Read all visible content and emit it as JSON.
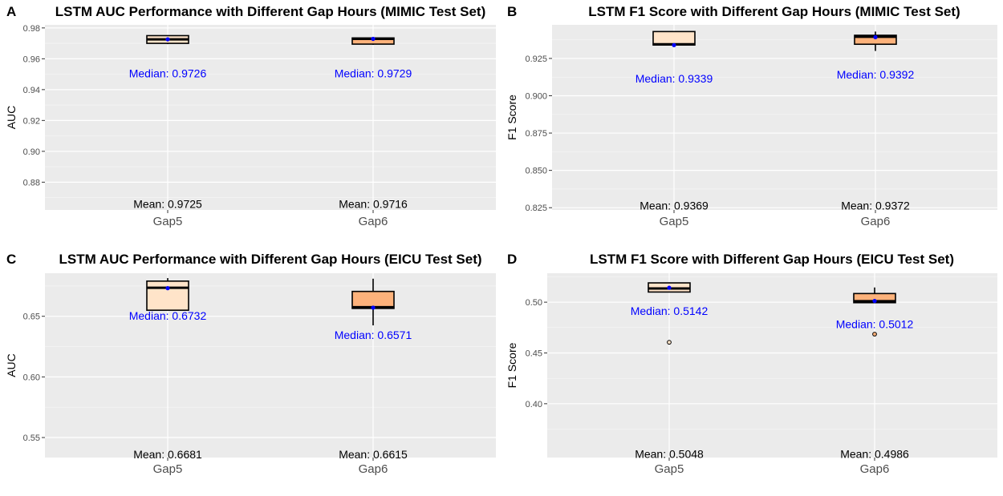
{
  "chart_data": [
    {
      "panel": "A",
      "type": "box",
      "title": "LSTM AUC Performance with Different Gap Hours (MIMIC Test Set)",
      "xlabel": "",
      "ylabel": "AUC",
      "ylim": [
        0.862,
        0.982
      ],
      "yticks": [
        0.88,
        0.9,
        0.92,
        0.94,
        0.96,
        0.98
      ],
      "yticks_text": [
        "0.88",
        "0.90",
        "0.92",
        "0.94",
        "0.96",
        "0.98"
      ],
      "categories": [
        "Gap5",
        "Gap6"
      ],
      "fill_colors": [
        "#ffe4c9",
        "#fdb27b"
      ],
      "boxes": [
        {
          "whisker_low": 0.9695,
          "q1": 0.97,
          "median": 0.9726,
          "q3": 0.975,
          "whisker_high": 0.975,
          "outliers": [],
          "point": 0.9726
        },
        {
          "whisker_low": 0.969,
          "q1": 0.9695,
          "median": 0.9729,
          "q3": 0.9735,
          "whisker_high": 0.9735,
          "outliers": [],
          "point": 0.9729
        }
      ],
      "median_labels": [
        "Median: 0.9726",
        "Median: 0.9729"
      ],
      "mean_labels": [
        "Mean: 0.9725",
        "Mean: 0.9716"
      ],
      "median_label_y": [
        0.9505,
        0.9505
      ],
      "mean_label_y": 0.866
    },
    {
      "panel": "B",
      "type": "box",
      "title": "LSTM F1 Score with Different Gap Hours (MIMIC Test Set)",
      "xlabel": "",
      "ylabel": "F1 Score",
      "ylim": [
        0.8235,
        0.9475
      ],
      "yticks": [
        0.825,
        0.85,
        0.875,
        0.9,
        0.925
      ],
      "yticks_text": [
        "0.825",
        "0.850",
        "0.875",
        "0.900",
        "0.925"
      ],
      "categories": [
        "Gap5",
        "Gap6"
      ],
      "fill_colors": [
        "#ffe4c9",
        "#fdb27b"
      ],
      "boxes": [
        {
          "whisker_low": 0.9335,
          "q1": 0.934,
          "median": 0.9345,
          "q3": 0.943,
          "whisker_high": 0.943,
          "outliers": [],
          "point": 0.9339
        },
        {
          "whisker_low": 0.93,
          "q1": 0.9345,
          "median": 0.9395,
          "q3": 0.9405,
          "whisker_high": 0.943,
          "outliers": [],
          "point": 0.9392
        }
      ],
      "median_labels": [
        "Median: 0.9339",
        "Median: 0.9392"
      ],
      "mean_labels": [
        "Mean: 0.9369",
        "Mean: 0.9372"
      ],
      "median_label_y": [
        0.9116,
        0.9143
      ],
      "mean_label_y": 0.8265
    },
    {
      "panel": "C",
      "type": "box",
      "title": "LSTM AUC Performance with Different Gap Hours (EICU Test Set)",
      "xlabel": "",
      "ylabel": "AUC",
      "ylim": [
        0.5335,
        0.6855
      ],
      "yticks": [
        0.55,
        0.6,
        0.65
      ],
      "yticks_text": [
        "0.55",
        "0.60",
        "0.65"
      ],
      "categories": [
        "Gap5",
        "Gap6"
      ],
      "fill_colors": [
        "#ffe4c9",
        "#fdb27b"
      ],
      "boxes": [
        {
          "whisker_low": 0.655,
          "q1": 0.655,
          "median": 0.6735,
          "q3": 0.679,
          "whisker_high": 0.6815,
          "outliers": [],
          "point": 0.6732
        },
        {
          "whisker_low": 0.6425,
          "q1": 0.6565,
          "median": 0.6575,
          "q3": 0.6705,
          "whisker_high": 0.681,
          "outliers": [],
          "point": 0.6571
        }
      ],
      "median_labels": [
        "Median: 0.6732",
        "Median: 0.6571"
      ],
      "mean_labels": [
        "Mean: 0.6681",
        "Mean: 0.6615"
      ],
      "median_label_y": [
        0.6505,
        0.6346
      ],
      "mean_label_y": 0.536
    },
    {
      "panel": "D",
      "type": "box",
      "title": "LSTM F1 Score with Different Gap Hours (EICU Test Set)",
      "xlabel": "",
      "ylabel": "F1 Score",
      "ylim": [
        0.347,
        0.5285
      ],
      "yticks": [
        0.4,
        0.45,
        0.5
      ],
      "yticks_text": [
        "0.40",
        "0.45",
        "0.50"
      ],
      "categories": [
        "Gap5",
        "Gap6"
      ],
      "fill_colors": [
        "#ffe4c9",
        "#fdb27b"
      ],
      "boxes": [
        {
          "whisker_low": 0.51,
          "q1": 0.51,
          "median": 0.5135,
          "q3": 0.519,
          "whisker_high": 0.5195,
          "outliers": [
            0.4605
          ],
          "point": 0.5142
        },
        {
          "whisker_low": 0.4995,
          "q1": 0.4995,
          "median": 0.501,
          "q3": 0.5085,
          "whisker_high": 0.5145,
          "outliers": [
            0.4685
          ],
          "point": 0.5012
        }
      ],
      "median_labels": [
        "Median: 0.5142",
        "Median: 0.5012"
      ],
      "mean_labels": [
        "Mean: 0.5048",
        "Mean: 0.4986"
      ],
      "median_label_y": [
        0.4914,
        0.4784
      ],
      "mean_label_y": 0.3505
    }
  ]
}
